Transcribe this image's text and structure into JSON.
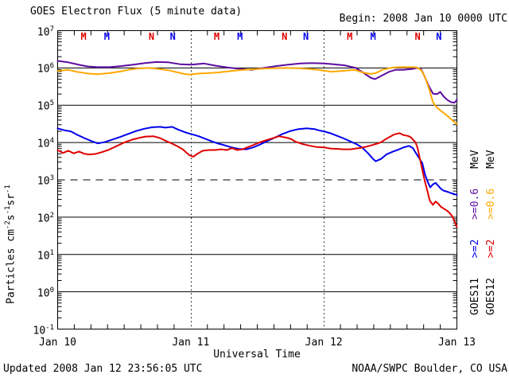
{
  "header": {
    "title": "GOES Electron Flux (5 minute data)",
    "begin": "Begin: 2008 Jan 10 0000 UTC"
  },
  "footer": {
    "updated": "Updated 2008 Jan 12 23:56:05 UTC",
    "source": "NOAA/SWPC Boulder, CO USA"
  },
  "axes": {
    "x_label": "Universal Time",
    "y_label": {
      "pre": "Particles cm",
      "exp1": "-2",
      "mid1": "s",
      "exp2": "-1",
      "mid2": "sr",
      "exp3": "-1"
    }
  },
  "legend": {
    "rows": [
      {
        "sat": "GOES11",
        "ge2": ">=2",
        "ge06": ">=0.6",
        "unit": "MeV",
        "ge2_color": "#0000ee",
        "ge06_color": "#5c0da0"
      },
      {
        "sat": "GOES12",
        "ge2": ">=2",
        "ge06": ">=0.6",
        "unit": "MeV",
        "ge2_color": "#e00000",
        "ge06_color": "#ffa800"
      }
    ]
  },
  "chart_data": {
    "type": "line",
    "title": "GOES Electron Flux (5 minute data)",
    "xlabel": "Universal Time",
    "ylabel": "Particles cm-2 s-1 sr-1",
    "x_tick_labels": [
      "Jan 10",
      "Jan 11",
      "Jan 12",
      "Jan 13"
    ],
    "x_range_days": [
      0,
      3
    ],
    "y_scale": "log10",
    "y_exponent_ticks": [
      7,
      6,
      5,
      4,
      3,
      2,
      1,
      0,
      -1
    ],
    "grid_decades_solid": [
      6,
      5,
      4,
      2,
      1,
      0
    ],
    "threshold_dashed_decade": 3,
    "day_boundary_lines": [
      1,
      2
    ],
    "legend_position": "right",
    "series": [
      {
        "name": "GOES11 >=0.6 MeV",
        "color": "#5c0da0",
        "points_t_log10flux": [
          [
            0,
            6.19
          ],
          [
            0.078,
            6.15
          ],
          [
            0.167,
            6.08
          ],
          [
            0.227,
            6.04
          ],
          [
            0.3,
            6.02
          ],
          [
            0.389,
            6.02
          ],
          [
            0.478,
            6.05
          ],
          [
            0.568,
            6.09
          ],
          [
            0.657,
            6.13
          ],
          [
            0.741,
            6.16
          ],
          [
            0.831,
            6.15
          ],
          [
            0.92,
            6.1
          ],
          [
            1.004,
            6.09
          ],
          [
            1.1,
            6.12
          ],
          [
            1.19,
            6.06
          ],
          [
            1.28,
            6.01
          ],
          [
            1.38,
            5.97
          ],
          [
            1.452,
            5.95
          ],
          [
            1.548,
            6.0
          ],
          [
            1.644,
            6.05
          ],
          [
            1.733,
            6.09
          ],
          [
            1.823,
            6.12
          ],
          [
            1.912,
            6.13
          ],
          [
            2.002,
            6.12
          ],
          [
            2.074,
            6.1
          ],
          [
            2.157,
            6.07
          ],
          [
            2.241,
            6.0
          ],
          [
            2.301,
            5.86
          ],
          [
            2.355,
            5.73
          ],
          [
            2.385,
            5.7
          ],
          [
            2.432,
            5.79
          ],
          [
            2.492,
            5.9
          ],
          [
            2.54,
            5.95
          ],
          [
            2.6,
            5.95
          ],
          [
            2.66,
            5.97
          ],
          [
            2.701,
            6.0
          ],
          [
            2.731,
            5.97
          ],
          [
            2.761,
            5.74
          ],
          [
            2.791,
            5.5
          ],
          [
            2.821,
            5.31
          ],
          [
            2.851,
            5.3
          ],
          [
            2.875,
            5.36
          ],
          [
            2.899,
            5.24
          ],
          [
            2.929,
            5.14
          ],
          [
            2.959,
            5.08
          ],
          [
            2.983,
            5.07
          ],
          [
            3,
            5.15
          ]
        ]
      },
      {
        "name": "GOES12 >=0.6 MeV",
        "color": "#ffa800",
        "points_t_log10flux": [
          [
            0,
            5.92
          ],
          [
            0.078,
            5.95
          ],
          [
            0.14,
            5.9
          ],
          [
            0.227,
            5.85
          ],
          [
            0.3,
            5.83
          ],
          [
            0.389,
            5.86
          ],
          [
            0.478,
            5.91
          ],
          [
            0.53,
            5.95
          ],
          [
            0.59,
            5.98
          ],
          [
            0.675,
            6.0
          ],
          [
            0.741,
            5.98
          ],
          [
            0.831,
            5.94
          ],
          [
            0.89,
            5.89
          ],
          [
            0.95,
            5.84
          ],
          [
            0.99,
            5.82
          ],
          [
            1.06,
            5.85
          ],
          [
            1.13,
            5.86
          ],
          [
            1.21,
            5.88
          ],
          [
            1.28,
            5.91
          ],
          [
            1.36,
            5.94
          ],
          [
            1.45,
            5.96
          ],
          [
            1.54,
            5.98
          ],
          [
            1.62,
            5.99
          ],
          [
            1.72,
            6.0
          ],
          [
            1.81,
            5.99
          ],
          [
            1.9,
            5.97
          ],
          [
            1.96,
            5.95
          ],
          [
            2.0,
            5.93
          ],
          [
            2.06,
            5.9
          ],
          [
            2.14,
            5.92
          ],
          [
            2.23,
            5.95
          ],
          [
            2.29,
            5.88
          ],
          [
            2.35,
            5.84
          ],
          [
            2.39,
            5.86
          ],
          [
            2.44,
            5.95
          ],
          [
            2.5,
            6.0
          ],
          [
            2.56,
            6.02
          ],
          [
            2.62,
            6.02
          ],
          [
            2.68,
            6.02
          ],
          [
            2.7,
            6.01
          ],
          [
            2.73,
            5.95
          ],
          [
            2.76,
            5.76
          ],
          [
            2.79,
            5.45
          ],
          [
            2.82,
            5.08
          ],
          [
            2.85,
            4.94
          ],
          [
            2.88,
            4.85
          ],
          [
            2.91,
            4.77
          ],
          [
            2.94,
            4.68
          ],
          [
            2.97,
            4.58
          ],
          [
            3,
            4.5
          ]
        ]
      },
      {
        "name": "GOES11 >=2 MeV",
        "color": "#0000ee",
        "points_t_log10flux": [
          [
            0,
            4.38
          ],
          [
            0.05,
            4.33
          ],
          [
            0.1,
            4.3
          ],
          [
            0.14,
            4.22
          ],
          [
            0.2,
            4.12
          ],
          [
            0.26,
            4.03
          ],
          [
            0.3,
            3.98
          ],
          [
            0.35,
            4.01
          ],
          [
            0.41,
            4.08
          ],
          [
            0.47,
            4.15
          ],
          [
            0.53,
            4.23
          ],
          [
            0.59,
            4.31
          ],
          [
            0.65,
            4.37
          ],
          [
            0.71,
            4.41
          ],
          [
            0.77,
            4.42
          ],
          [
            0.81,
            4.4
          ],
          [
            0.86,
            4.42
          ],
          [
            0.91,
            4.34
          ],
          [
            0.97,
            4.26
          ],
          [
            1.0,
            4.23
          ],
          [
            1.06,
            4.17
          ],
          [
            1.11,
            4.1
          ],
          [
            1.16,
            4.03
          ],
          [
            1.2,
            3.98
          ],
          [
            1.24,
            3.94
          ],
          [
            1.3,
            3.88
          ],
          [
            1.36,
            3.83
          ],
          [
            1.42,
            3.82
          ],
          [
            1.46,
            3.86
          ],
          [
            1.51,
            3.93
          ],
          [
            1.57,
            4.03
          ],
          [
            1.63,
            4.13
          ],
          [
            1.69,
            4.23
          ],
          [
            1.75,
            4.31
          ],
          [
            1.81,
            4.36
          ],
          [
            1.87,
            4.38
          ],
          [
            1.93,
            4.36
          ],
          [
            1.96,
            4.33
          ],
          [
            2.0,
            4.3
          ],
          [
            2.05,
            4.25
          ],
          [
            2.1,
            4.18
          ],
          [
            2.15,
            4.11
          ],
          [
            2.2,
            4.03
          ],
          [
            2.25,
            3.95
          ],
          [
            2.29,
            3.86
          ],
          [
            2.33,
            3.72
          ],
          [
            2.37,
            3.56
          ],
          [
            2.39,
            3.5
          ],
          [
            2.43,
            3.56
          ],
          [
            2.47,
            3.68
          ],
          [
            2.52,
            3.76
          ],
          [
            2.56,
            3.81
          ],
          [
            2.6,
            3.87
          ],
          [
            2.64,
            3.91
          ],
          [
            2.67,
            3.85
          ],
          [
            2.69,
            3.73
          ],
          [
            2.74,
            3.45
          ],
          [
            2.76,
            3.15
          ],
          [
            2.78,
            2.95
          ],
          [
            2.8,
            2.8
          ],
          [
            2.82,
            2.88
          ],
          [
            2.84,
            2.92
          ],
          [
            2.86,
            2.84
          ],
          [
            2.88,
            2.76
          ],
          [
            2.9,
            2.71
          ],
          [
            2.93,
            2.68
          ],
          [
            2.96,
            2.64
          ],
          [
            2.98,
            2.62
          ],
          [
            3,
            2.6
          ]
        ]
      },
      {
        "name": "GOES12 >=2 MeV",
        "color": "#e00000",
        "points_t_log10flux": [
          [
            0,
            3.8
          ],
          [
            0.04,
            3.72
          ],
          [
            0.08,
            3.78
          ],
          [
            0.12,
            3.71
          ],
          [
            0.16,
            3.76
          ],
          [
            0.2,
            3.7
          ],
          [
            0.24,
            3.68
          ],
          [
            0.29,
            3.7
          ],
          [
            0.33,
            3.74
          ],
          [
            0.38,
            3.8
          ],
          [
            0.44,
            3.9
          ],
          [
            0.5,
            4.0
          ],
          [
            0.56,
            4.08
          ],
          [
            0.62,
            4.13
          ],
          [
            0.66,
            4.16
          ],
          [
            0.72,
            4.17
          ],
          [
            0.77,
            4.12
          ],
          [
            0.81,
            4.05
          ],
          [
            0.86,
            3.97
          ],
          [
            0.9,
            3.9
          ],
          [
            0.94,
            3.82
          ],
          [
            0.99,
            3.66
          ],
          [
            1.02,
            3.62
          ],
          [
            1.05,
            3.7
          ],
          [
            1.09,
            3.78
          ],
          [
            1.14,
            3.8
          ],
          [
            1.18,
            3.8
          ],
          [
            1.23,
            3.82
          ],
          [
            1.27,
            3.8
          ],
          [
            1.31,
            3.85
          ],
          [
            1.35,
            3.8
          ],
          [
            1.39,
            3.82
          ],
          [
            1.43,
            3.88
          ],
          [
            1.48,
            3.95
          ],
          [
            1.53,
            4.02
          ],
          [
            1.58,
            4.08
          ],
          [
            1.63,
            4.13
          ],
          [
            1.66,
            4.17
          ],
          [
            1.71,
            4.14
          ],
          [
            1.75,
            4.1
          ],
          [
            1.79,
            4.02
          ],
          [
            1.84,
            3.96
          ],
          [
            1.9,
            3.91
          ],
          [
            1.95,
            3.88
          ],
          [
            2.0,
            3.87
          ],
          [
            2.05,
            3.84
          ],
          [
            2.1,
            3.83
          ],
          [
            2.15,
            3.82
          ],
          [
            2.2,
            3.82
          ],
          [
            2.24,
            3.84
          ],
          [
            2.28,
            3.86
          ],
          [
            2.32,
            3.89
          ],
          [
            2.36,
            3.93
          ],
          [
            2.4,
            3.97
          ],
          [
            2.43,
            4.01
          ],
          [
            2.46,
            4.08
          ],
          [
            2.5,
            4.16
          ],
          [
            2.53,
            4.22
          ],
          [
            2.57,
            4.25
          ],
          [
            2.6,
            4.2
          ],
          [
            2.63,
            4.18
          ],
          [
            2.65,
            4.15
          ],
          [
            2.67,
            4.08
          ],
          [
            2.69,
            4.0
          ],
          [
            2.705,
            3.85
          ],
          [
            2.72,
            3.6
          ],
          [
            2.735,
            3.35
          ],
          [
            2.75,
            3.1
          ],
          [
            2.765,
            2.88
          ],
          [
            2.78,
            2.68
          ],
          [
            2.79,
            2.52
          ],
          [
            2.8,
            2.42
          ],
          [
            2.82,
            2.33
          ],
          [
            2.84,
            2.42
          ],
          [
            2.86,
            2.36
          ],
          [
            2.88,
            2.28
          ],
          [
            2.9,
            2.23
          ],
          [
            2.92,
            2.19
          ],
          [
            2.94,
            2.13
          ],
          [
            2.96,
            2.05
          ],
          [
            2.975,
            1.95
          ],
          [
            2.99,
            1.82
          ],
          [
            3,
            1.74
          ]
        ]
      }
    ],
    "event_markers": [
      {
        "letter": "M",
        "t": 0.195,
        "color": "#e00000"
      },
      {
        "letter": "M",
        "t": 0.37,
        "color": "#0000ee"
      },
      {
        "letter": "N",
        "t": 0.705,
        "color": "#e00000"
      },
      {
        "letter": "N",
        "t": 0.865,
        "color": "#0000ee"
      },
      {
        "letter": "M",
        "t": 1.195,
        "color": "#e00000"
      },
      {
        "letter": "M",
        "t": 1.37,
        "color": "#0000ee"
      },
      {
        "letter": "N",
        "t": 1.705,
        "color": "#e00000"
      },
      {
        "letter": "N",
        "t": 1.865,
        "color": "#0000ee"
      },
      {
        "letter": "M",
        "t": 2.195,
        "color": "#e00000"
      },
      {
        "letter": "M",
        "t": 2.37,
        "color": "#0000ee"
      },
      {
        "letter": "N",
        "t": 2.705,
        "color": "#e00000"
      },
      {
        "letter": "N",
        "t": 2.865,
        "color": "#0000ee"
      }
    ]
  }
}
